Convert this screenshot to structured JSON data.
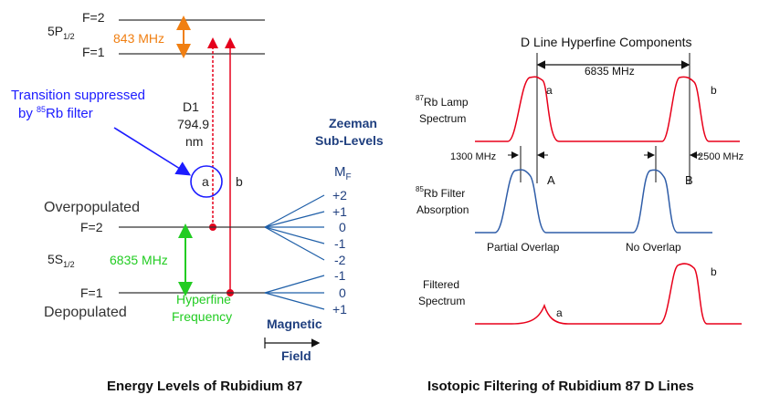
{
  "left": {
    "caption": "Energy Levels of Rubidium 87",
    "p_state": {
      "label": "5P",
      "sub": "1/2",
      "f_upper": "F=2",
      "f_lower": "F=1",
      "splitting": "843 MHz"
    },
    "s_state": {
      "label": "5S",
      "sub": "1/2",
      "f_upper": "F=2",
      "f_lower": "F=1",
      "splitting": "6835 MHz",
      "upper_note": "Overpopulated",
      "lower_note": "Depopulated"
    },
    "suppressed_note": {
      "line1": "Transition suppressed",
      "line2_pre": "by ",
      "line2_sup": "85",
      "line2_post": "Rb filter"
    },
    "d1": {
      "name": "D1",
      "wavelength": "794.9",
      "unit": "nm"
    },
    "transition_a": "a",
    "transition_b": "b",
    "zeeman": {
      "title1": "Zeeman",
      "title2": "Sub-Levels",
      "mf": "M",
      "mf_sub": "F",
      "upper_levels": [
        "+2",
        "+1",
        "0",
        "-1",
        "-2"
      ],
      "lower_levels": [
        "-1",
        "0",
        "+1"
      ]
    },
    "hyperfine": {
      "line1": "Hyperfine",
      "line2": "Frequency"
    },
    "magnetic": {
      "line1": "Magnetic",
      "line2": "Field"
    },
    "colors": {
      "orange": "#f07f12",
      "green": "#22cc22",
      "blue": "#1c1cff",
      "red": "#e5001c",
      "navy": "#1f3f7f"
    }
  },
  "right": {
    "caption": "Isotopic Filtering of Rubidium 87 D Lines",
    "header": "D Line Hyperfine Components",
    "separation": "6835 MHz",
    "lamp": {
      "sup": "87",
      "line1": "Rb Lamp",
      "line2": "Spectrum"
    },
    "filter": {
      "sup": "85",
      "line1": "Rb Filter",
      "line2": "Absorption"
    },
    "filtered": {
      "line1": "Filtered",
      "line2": "Spectrum"
    },
    "offset_left": "1300 MHz",
    "offset_right": "2500 MHz",
    "peak_a": "a",
    "peak_b": "b",
    "dip_A": "A",
    "dip_B": "B",
    "partial_overlap": "Partial Overlap",
    "no_overlap": "No Overlap",
    "colors": {
      "red": "#e8001a",
      "blue": "#2f5da8"
    }
  }
}
